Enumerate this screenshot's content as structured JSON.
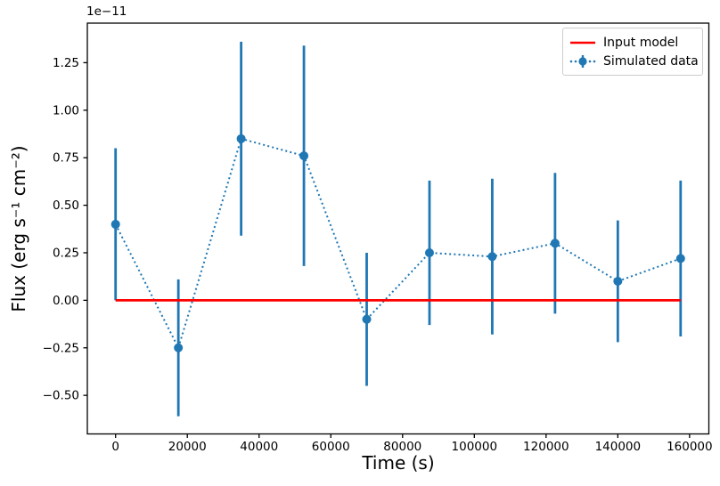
{
  "chart_data": {
    "type": "line",
    "title": "",
    "xlabel": "Time (s)",
    "ylabel": "Flux (erg s⁻¹ cm⁻²)",
    "offset_text": "1e−11",
    "y_units_note": "y values in units of 1e-11",
    "xlim": [
      -7875,
      165375
    ],
    "ylim": [
      -0.703,
      1.458
    ],
    "grid": false,
    "legend_position": "upper right",
    "xticks": [
      0,
      20000,
      40000,
      60000,
      80000,
      100000,
      120000,
      140000,
      160000
    ],
    "yticks": [
      -0.5,
      -0.25,
      0.0,
      0.25,
      0.5,
      0.75,
      1.0,
      1.25
    ],
    "series": [
      {
        "name": "Input model",
        "kind": "line",
        "color": "#ff0000",
        "x": [
          0,
          157500
        ],
        "y": [
          0.0,
          0.0
        ]
      },
      {
        "name": "Simulated data",
        "kind": "errorbar",
        "color": "#1f77b4",
        "linestyle": "dotted",
        "marker": "circle",
        "x": [
          0,
          17500,
          35000,
          52500,
          70000,
          87500,
          105000,
          122500,
          140000,
          157500
        ],
        "y": [
          0.4,
          -0.25,
          0.85,
          0.76,
          -0.1,
          0.25,
          0.23,
          0.3,
          0.1,
          0.22
        ],
        "yerr": [
          0.4,
          0.36,
          0.51,
          0.58,
          0.35,
          0.38,
          0.41,
          0.37,
          0.32,
          0.41
        ]
      }
    ],
    "legend": {
      "items": [
        "Input model",
        "Simulated data"
      ]
    }
  }
}
